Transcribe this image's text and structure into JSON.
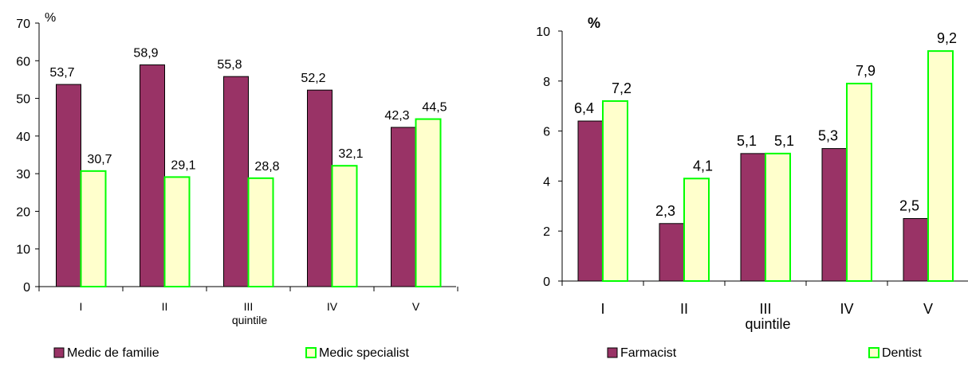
{
  "chart_data": [
    {
      "type": "bar",
      "xlabel": "quintile",
      "ylabel": "%",
      "ylim": [
        0,
        70
      ],
      "yticks": [
        0,
        10,
        20,
        30,
        40,
        50,
        60,
        70
      ],
      "categories": [
        "I",
        "II",
        "III",
        "IV",
        "V"
      ],
      "legend_position": "bottom",
      "series": [
        {
          "name": "Medic de familie",
          "values": [
            53.7,
            58.9,
            55.8,
            52.2,
            42.3
          ],
          "labels": [
            "53,7",
            "58,9",
            "55,8",
            "52,2",
            "42,3"
          ],
          "color": "#993366"
        },
        {
          "name": "Medic specialist",
          "values": [
            30.7,
            29.1,
            28.8,
            32.1,
            44.5
          ],
          "labels": [
            "30,7",
            "29,1",
            "28,8",
            "32,1",
            "44,5"
          ],
          "color": "#ffffcc",
          "border": "#00ff00"
        }
      ]
    },
    {
      "type": "bar",
      "xlabel": "quintile",
      "ylabel": "%",
      "ylim": [
        0,
        10
      ],
      "yticks": [
        0,
        2,
        4,
        6,
        8,
        10
      ],
      "categories": [
        "I",
        "II",
        "III",
        "IV",
        "V"
      ],
      "legend_position": "bottom",
      "series": [
        {
          "name": "Farmacist",
          "values": [
            6.4,
            2.3,
            5.1,
            5.3,
            2.5
          ],
          "labels": [
            "6,4",
            "2,3",
            "5,1",
            "5,3",
            "2,5"
          ],
          "color": "#993366"
        },
        {
          "name": "Dentist",
          "values": [
            7.2,
            4.1,
            5.1,
            7.9,
            9.2
          ],
          "labels": [
            "7,2",
            "4,1",
            "5,1",
            "7,9",
            "9,2"
          ],
          "color": "#ffffcc",
          "border": "#00ff00"
        }
      ]
    }
  ]
}
